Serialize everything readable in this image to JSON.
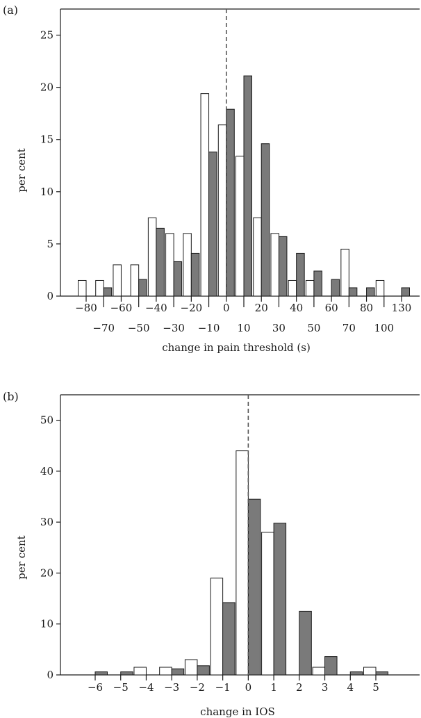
{
  "colors": {
    "open_bar": "#ffffff",
    "filled_bar": "#7a7a7a",
    "outline": "#1a1a1a",
    "zero_line": "#555555"
  },
  "chart_data": [
    {
      "type": "bar",
      "panel_label": "(a)",
      "xlabel": "change in pain threshold (s)",
      "ylabel": "per cent",
      "ylim": [
        0,
        27.5
      ],
      "y_ticks": [
        "0",
        "5",
        "10",
        "15",
        "20",
        "25"
      ],
      "y_tick_values": [
        0,
        5,
        10,
        15,
        20,
        25
      ],
      "categories": [
        "−80",
        "−70",
        "−60",
        "−50",
        "−40",
        "−30",
        "−20",
        "−10",
        "0",
        "10",
        "20",
        "30",
        "40",
        "50",
        "60",
        "70",
        "80",
        "100",
        "130"
      ],
      "category_label_rows": [
        0,
        1,
        0,
        1,
        0,
        1,
        0,
        1,
        0,
        1,
        0,
        1,
        0,
        1,
        0,
        1,
        0,
        1,
        0
      ],
      "zero_line": "dashed vertical line at 0",
      "series": [
        {
          "style": "open",
          "values": [
            1.5,
            1.5,
            3.0,
            3.0,
            7.5,
            6.0,
            6.0,
            19.4,
            16.4,
            13.4,
            7.5,
            6.0,
            1.5,
            1.5,
            0,
            4.5,
            0,
            1.5,
            0
          ]
        },
        {
          "style": "filled",
          "values": [
            0,
            0.8,
            0,
            1.6,
            6.5,
            3.3,
            4.1,
            13.8,
            17.9,
            21.1,
            14.6,
            5.7,
            4.1,
            2.4,
            1.6,
            0.8,
            0.8,
            0,
            0.8
          ]
        }
      ]
    },
    {
      "type": "bar",
      "panel_label": "(b)",
      "xlabel": "change in IOS",
      "ylabel": "per cent",
      "ylim": [
        0,
        55
      ],
      "y_ticks": [
        "0",
        "10",
        "20",
        "30",
        "40",
        "50"
      ],
      "y_tick_values": [
        0,
        10,
        20,
        30,
        40,
        50
      ],
      "categories": [
        "−6",
        "−5",
        "−4",
        "−3",
        "−2",
        "−1",
        "0",
        "1",
        "2",
        "3",
        "4",
        "5"
      ],
      "zero_line": "dashed vertical line at 0",
      "series": [
        {
          "style": "open",
          "values": [
            0,
            0,
            1.5,
            1.5,
            3.0,
            19.0,
            44.0,
            28.0,
            0,
            1.5,
            0,
            1.5
          ]
        },
        {
          "style": "filled",
          "values": [
            0.6,
            0.6,
            0,
            1.2,
            1.8,
            14.2,
            34.5,
            29.8,
            12.5,
            3.6,
            0.6,
            0.6
          ]
        }
      ]
    }
  ]
}
